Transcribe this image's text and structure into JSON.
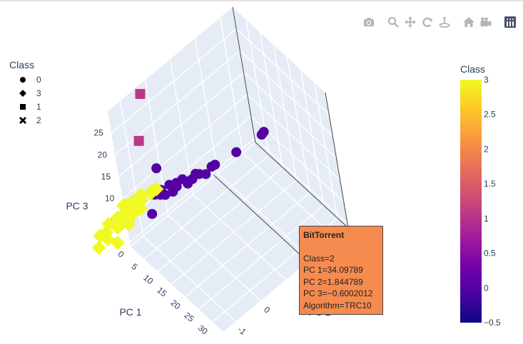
{
  "modebar": {
    "buttons": [
      {
        "name": "download-plot-button",
        "icon": "camera-icon",
        "title": "Download plot as a png"
      },
      {
        "name": "zoom-button",
        "icon": "zoom-icon",
        "title": "Zoom"
      },
      {
        "name": "pan-button",
        "icon": "pan-icon",
        "title": "Pan"
      },
      {
        "name": "orbit-rotation-button",
        "icon": "orbit-icon",
        "title": "Orbital rotation"
      },
      {
        "name": "turntable-rotation-button",
        "icon": "turntable-icon",
        "title": "Turntable rotation"
      },
      {
        "name": "reset-camera-button",
        "icon": "home-icon",
        "title": "Reset camera to default"
      },
      {
        "name": "last-saved-camera-button",
        "icon": "video-camera-icon",
        "title": "Reset camera to last save"
      },
      {
        "name": "plotly-logo-button",
        "icon": "plotly-logo-icon",
        "title": "Produced with Plotly"
      }
    ]
  },
  "legend": {
    "title": "Class",
    "items": [
      {
        "label": "0",
        "symbol": "circle"
      },
      {
        "label": "3",
        "symbol": "diamond"
      },
      {
        "label": "1",
        "symbol": "square"
      },
      {
        "label": "2",
        "symbol": "x"
      }
    ]
  },
  "colorbar": {
    "title": "Class",
    "min": -0.5,
    "max": 3,
    "ticks": [
      "−0.5",
      "0",
      "0.5",
      "1",
      "1.5",
      "2",
      "2.5",
      "3"
    ],
    "tick_values": [
      -0.5,
      0,
      0.5,
      1,
      1.5,
      2,
      2.5,
      3
    ],
    "colorscale": [
      "#0d0887",
      "#46039f",
      "#7201a8",
      "#9c179e",
      "#bd3786",
      "#d8576b",
      "#ed7953",
      "#fb9f3a",
      "#fdca26",
      "#f0f921"
    ]
  },
  "tooltip": {
    "title": "BitTorrent",
    "lines": [
      "Class=2",
      "PC 1=34.09789",
      "PC 2=1.844789",
      "PC 3=−0.6002012",
      "Algorithm=TRC10"
    ]
  },
  "chart_data": {
    "type": "scatter",
    "dimensions": 3,
    "axes": {
      "x": {
        "label": "PC 1",
        "ticks": [
          "0",
          "5",
          "10",
          "15",
          "20",
          "25",
          "30"
        ]
      },
      "y": {
        "label": "PC 2",
        "ticks": [
          "-1",
          "0"
        ]
      },
      "z": {
        "label": "PC 3",
        "ticks": [
          "0",
          "5",
          "10",
          "15",
          "20",
          "25"
        ]
      }
    },
    "color_by": "Class",
    "series": [
      {
        "name": "0",
        "symbol": "circle",
        "color": "#5402a3",
        "points": [
          [
            0.7,
            -0.4,
            6.0
          ],
          [
            1.3,
            -0.2,
            6.5
          ],
          [
            1.9,
            -0.3,
            6.2
          ],
          [
            2.2,
            0.05,
            7.0
          ],
          [
            2.9,
            0.25,
            6.9
          ],
          [
            3.4,
            0.2,
            6.6
          ],
          [
            3.9,
            0.4,
            7.6
          ],
          [
            4.6,
            0.5,
            7.0
          ],
          [
            5.2,
            0.65,
            7.2
          ],
          [
            5.7,
            0.75,
            8.2
          ],
          [
            6.1,
            0.85,
            7.9
          ],
          [
            7.0,
            1.25,
            8.2
          ],
          [
            7.4,
            1.35,
            8.4
          ],
          [
            8.9,
            2.05,
            8.8
          ],
          [
            0.6,
            -0.6,
            2.5
          ],
          [
            -0.4,
            -0.1,
            10.0
          ],
          [
            10.7,
            2.9,
            9.8
          ],
          [
            11.2,
            2.95,
            10.5
          ],
          [
            1.5,
            -0.1,
            5.0
          ],
          [
            2.6,
            0.1,
            5.4
          ],
          [
            4.1,
            0.55,
            6.0
          ],
          [
            6.4,
            1.05,
            7.1
          ]
        ]
      },
      {
        "name": "3",
        "symbol": "diamond",
        "color": "#f0f921",
        "points": [
          [
            -4.5,
            -1.15,
            4.1
          ],
          [
            -3.9,
            -1.1,
            4.2
          ],
          [
            -3.3,
            -0.9,
            4.5
          ],
          [
            -2.9,
            -0.6,
            4.8
          ],
          [
            -2.1,
            -0.7,
            4.4
          ],
          [
            -1.7,
            -0.3,
            5.0
          ],
          [
            -1.0,
            -0.4,
            5.3
          ],
          [
            -0.6,
            -0.2,
            5.6
          ],
          [
            -3.0,
            -1.3,
            3.8
          ],
          [
            -2.2,
            -1.2,
            3.9
          ],
          [
            -1.5,
            -1.1,
            4.0
          ],
          [
            -0.9,
            -1.0,
            4.3
          ],
          [
            -3.6,
            -1.5,
            3.5
          ],
          [
            -2.8,
            -1.4,
            3.6
          ],
          [
            -1.2,
            -1.3,
            3.7
          ],
          [
            -0.3,
            -0.9,
            4.6
          ],
          [
            -1.7,
            -1.7,
            3.3
          ],
          [
            -4.2,
            -1.8,
            3.2
          ],
          [
            -3.8,
            -2.2,
            2.6
          ],
          [
            -3.2,
            -2.0,
            2.8
          ],
          [
            -2.0,
            -1.5,
            3.1
          ],
          [
            -0.4,
            -1.4,
            3.4
          ],
          [
            -0.4,
            -1.9,
            1.5
          ],
          [
            -2.7,
            -2.4,
            1.4
          ],
          [
            -1.9,
            -2.1,
            2.4
          ]
        ]
      },
      {
        "name": "1",
        "symbol": "square",
        "color": "#bd3786",
        "points": [
          [
            0.5,
            -0.3,
            28.5
          ],
          [
            0.2,
            -0.6,
            19.0
          ]
        ]
      },
      {
        "name": "2",
        "symbol": "x",
        "color": "#ed7953",
        "points": [
          [
            34.09789,
            1.844789,
            -0.6002012
          ]
        ]
      }
    ]
  }
}
